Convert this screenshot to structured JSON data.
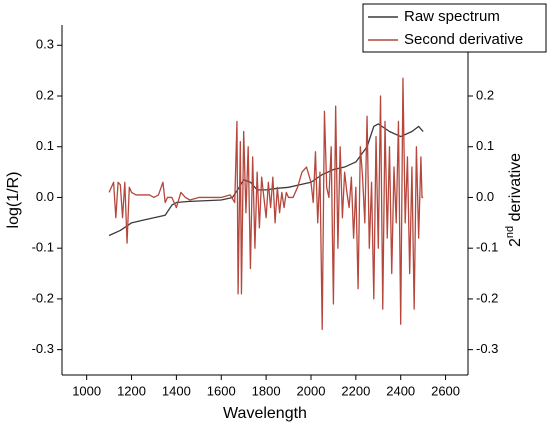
{
  "chart_data": {
    "type": "line",
    "x_label": "Wavelength",
    "y_label": "log(1/R)",
    "y2_label_parts": [
      "2",
      "nd",
      " derivative"
    ],
    "xlim": [
      890,
      2700
    ],
    "xticks": [
      1000,
      1200,
      1400,
      1600,
      1800,
      2000,
      2200,
      2400,
      2600
    ],
    "ylim": [
      -0.35,
      0.34
    ],
    "yticks": [
      -0.3,
      -0.2,
      -0.1,
      {
        "value": 0,
        "label": "0.0"
      },
      0.1,
      0.2,
      0.3
    ],
    "y2lim": [
      -0.35,
      0.34
    ],
    "y2ticks": [
      -0.3,
      -0.2,
      -0.1,
      {
        "value": 0,
        "label": "0.0"
      },
      0.1,
      0.2
    ],
    "legend": "top-right",
    "series": [
      {
        "name": "Raw spectrum",
        "color": "#3a3a3a",
        "x": [
          1100,
          1150,
          1200,
          1250,
          1300,
          1350,
          1380,
          1400,
          1450,
          1500,
          1600,
          1650,
          1680,
          1700,
          1730,
          1760,
          1800,
          1850,
          1900,
          1950,
          2000,
          2050,
          2100,
          2150,
          2200,
          2250,
          2280,
          2300,
          2350,
          2400,
          2450,
          2480,
          2500
        ],
        "values": [
          -0.075,
          -0.065,
          -0.05,
          -0.045,
          -0.04,
          -0.035,
          -0.015,
          -0.01,
          -0.008,
          -0.007,
          -0.005,
          0.0,
          0.02,
          0.035,
          0.03,
          0.015,
          0.015,
          0.018,
          0.02,
          0.025,
          0.03,
          0.045,
          0.055,
          0.06,
          0.07,
          0.1,
          0.14,
          0.145,
          0.13,
          0.12,
          0.13,
          0.14,
          0.13
        ]
      },
      {
        "name": "Second derivative",
        "color": "#b5473d",
        "axis": "y2",
        "x": [
          1100,
          1120,
          1130,
          1140,
          1150,
          1160,
          1170,
          1180,
          1190,
          1200,
          1220,
          1250,
          1280,
          1300,
          1320,
          1340,
          1350,
          1360,
          1380,
          1400,
          1420,
          1440,
          1460,
          1500,
          1550,
          1600,
          1640,
          1660,
          1670,
          1675,
          1685,
          1690,
          1700,
          1710,
          1720,
          1730,
          1740,
          1750,
          1760,
          1770,
          1780,
          1790,
          1800,
          1810,
          1820,
          1830,
          1840,
          1850,
          1860,
          1870,
          1880,
          1890,
          1900,
          1920,
          1940,
          1960,
          1980,
          2000,
          2010,
          2020,
          2030,
          2040,
          2050,
          2060,
          2070,
          2080,
          2090,
          2100,
          2110,
          2120,
          2130,
          2140,
          2150,
          2160,
          2170,
          2180,
          2190,
          2200,
          2210,
          2220,
          2230,
          2240,
          2250,
          2260,
          2270,
          2280,
          2290,
          2300,
          2310,
          2320,
          2330,
          2340,
          2350,
          2360,
          2370,
          2380,
          2390,
          2400,
          2410,
          2420,
          2430,
          2440,
          2450,
          2460,
          2470,
          2480,
          2490,
          2495,
          2500
        ],
        "values": [
          0.01,
          0.03,
          -0.04,
          0.03,
          0.025,
          -0.04,
          0.03,
          -0.09,
          0.02,
          0.01,
          0.005,
          0.005,
          0.005,
          0.0,
          0.005,
          0.03,
          -0.01,
          0.0,
          0.0,
          -0.02,
          0.01,
          0.0,
          -0.005,
          0.0,
          0.0,
          0.0,
          0.005,
          -0.01,
          0.15,
          -0.19,
          0.11,
          -0.19,
          0.13,
          -0.03,
          0.1,
          -0.14,
          0.08,
          -0.1,
          0.05,
          -0.06,
          0.04,
          0.0,
          -0.04,
          0.03,
          -0.02,
          0.04,
          -0.05,
          0.02,
          -0.03,
          0.01,
          -0.02,
          0.01,
          0.0,
          0.0,
          0.02,
          0.05,
          0.06,
          0.03,
          -0.01,
          0.09,
          -0.05,
          0.05,
          -0.26,
          0.17,
          0.02,
          0.0,
          0.1,
          -0.21,
          0.18,
          -0.1,
          0.1,
          -0.04,
          0.05,
          0.01,
          -0.02,
          0.04,
          -0.08,
          0.02,
          -0.18,
          0.1,
          0.04,
          -0.05,
          0.16,
          -0.1,
          0.03,
          -0.2,
          0.12,
          -0.1,
          0.2,
          -0.22,
          0.15,
          -0.08,
          0.1,
          -0.15,
          0.06,
          -0.05,
          0.15,
          -0.25,
          0.235,
          -0.05,
          0.08,
          -0.15,
          0.06,
          -0.22,
          0.1,
          -0.08,
          0.08,
          0.0,
          0.0
        ]
      }
    ]
  }
}
